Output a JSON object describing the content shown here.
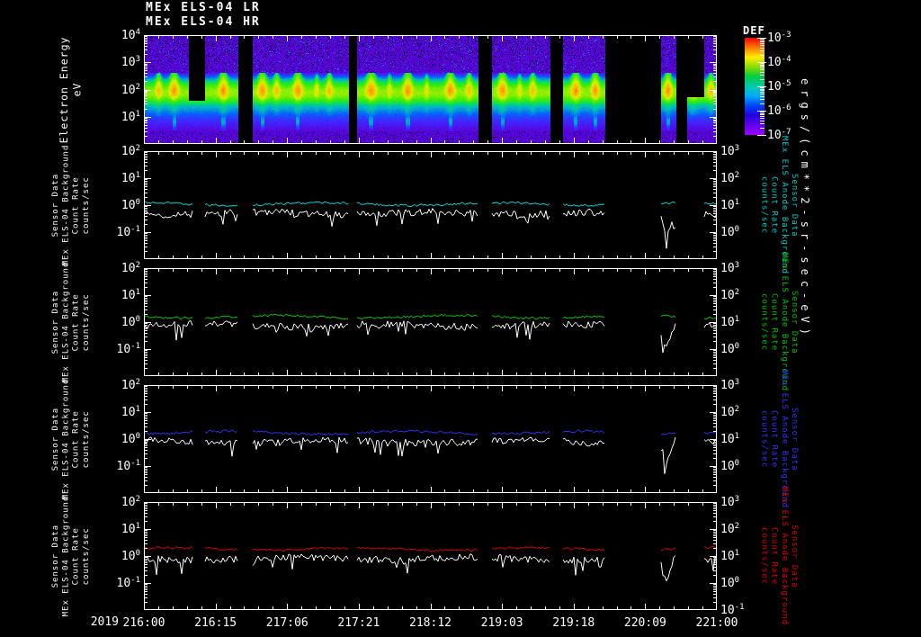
{
  "page": {
    "background": "#000000",
    "text_color": "#ffffff"
  },
  "titles": {
    "line1": "MEx ELS-04 LR",
    "line2": "MEx ELS-04 HR"
  },
  "x_axis": {
    "year": "2019",
    "tick_labels": [
      "216:00",
      "216:15",
      "217:06",
      "217:21",
      "218:12",
      "219:03",
      "219:18",
      "220:09",
      "221:00"
    ],
    "minor_divisions_per_major": 5,
    "total_minor_divisions": 40
  },
  "colorbar": {
    "title": "DEF",
    "units": "ergs/(cm**2-sr-sec-eV)",
    "tick_exponents": [
      -3,
      -4,
      -5,
      -6,
      -7
    ],
    "gradient_top_to_bottom": [
      "#ff0000",
      "#ff7700",
      "#ffee00",
      "#88dd00",
      "#00cc44",
      "#00ccaa",
      "#00aaff",
      "#0044ff",
      "#2200dd",
      "#6600ee",
      "#9900ff"
    ]
  },
  "time_segments": [
    [
      0,
      0.0848
    ],
    [
      0.1067,
      0.1648
    ],
    [
      0.19,
      0.358
    ],
    [
      0.372,
      0.584
    ],
    [
      0.6075,
      0.7096
    ],
    [
      0.7316,
      0.8053
    ],
    [
      0.9026,
      0.9293
    ],
    [
      0.978,
      1.0
    ]
  ],
  "chart_data": [
    {
      "type": "heatmap",
      "name": "electron-energy-spectrogram",
      "title": "MEx ELS-04 LR / MEx ELS-04 HR",
      "ylabel_lines": [
        "Electron Energy",
        "eV"
      ],
      "y_tick_exponents": [
        4,
        3,
        2,
        1
      ],
      "y_range_log10_eV": [
        0,
        4
      ],
      "z_units": "ergs/(cm**2-sr-sec-eV)",
      "z_range_log10": [
        -7,
        -3
      ],
      "gap_rects": [
        [
          0.0785,
          0.1067,
          0,
          0.6
        ],
        [
          0.1648,
          0.19,
          0,
          1
        ],
        [
          0.358,
          0.372,
          0,
          1
        ],
        [
          0.584,
          0.6075,
          0,
          1
        ],
        [
          0.7096,
          0.7316,
          0,
          1
        ],
        [
          0.8053,
          0.9026,
          0,
          1
        ],
        [
          0.9293,
          0.948,
          0,
          1
        ],
        [
          0.948,
          0.978,
          0,
          0.57
        ]
      ],
      "flares": [
        {
          "x": 0.025,
          "a": 0.7,
          "w": 0.005
        },
        {
          "x": 0.052,
          "a": 1.0,
          "w": 0.007
        },
        {
          "x": 0.138,
          "a": 1.0,
          "w": 0.007
        },
        {
          "x": 0.206,
          "a": 1.0,
          "w": 0.007
        },
        {
          "x": 0.231,
          "a": 0.7,
          "w": 0.005
        },
        {
          "x": 0.268,
          "a": 1.0,
          "w": 0.007
        },
        {
          "x": 0.301,
          "a": 0.45,
          "w": 0.0035
        },
        {
          "x": 0.323,
          "a": 0.7,
          "w": 0.005
        },
        {
          "x": 0.396,
          "a": 1.0,
          "w": 0.008
        },
        {
          "x": 0.428,
          "a": 0.45,
          "w": 0.0035
        },
        {
          "x": 0.46,
          "a": 1.0,
          "w": 0.007
        },
        {
          "x": 0.493,
          "a": 0.45,
          "w": 0.0035
        },
        {
          "x": 0.534,
          "a": 1.0,
          "w": 0.007
        },
        {
          "x": 0.567,
          "a": 0.7,
          "w": 0.005
        },
        {
          "x": 0.625,
          "a": 1.0,
          "w": 0.007
        },
        {
          "x": 0.655,
          "a": 0.45,
          "w": 0.0035
        },
        {
          "x": 0.678,
          "a": 0.7,
          "w": 0.005
        },
        {
          "x": 0.753,
          "a": 1.0,
          "w": 0.007
        },
        {
          "x": 0.787,
          "a": 1.0,
          "w": 0.006
        },
        {
          "x": 0.914,
          "a": 1.0,
          "w": 0.006
        },
        {
          "x": 0.958,
          "a": 0.8,
          "w": 0.006
        },
        {
          "x": 0.989,
          "a": 0.7,
          "w": 0.005
        }
      ]
    },
    {
      "type": "line",
      "name": "background-count-rate-panel-cyan",
      "left_label_lines": [
        "Sensor Data",
        "MEx ELS-04 Background",
        "Count Rate",
        "counts/sec"
      ],
      "right_label_lines": [
        "Sensor Data",
        "MEx ELS Anode Background",
        "Count Rate",
        "counts/sec"
      ],
      "right_label_color": "#00cccc",
      "left_tick_exponents": [
        2,
        1,
        0,
        -1
      ],
      "right_tick_exponents": [
        3,
        2,
        1,
        0
      ],
      "y_left_range_log10": [
        -2,
        2
      ],
      "y_right_range_log10": [
        -1,
        3
      ],
      "series": [
        {
          "name": "MEx ELS Anode Background",
          "color": "#00dddd",
          "level_log10": 0.04,
          "noise_log10": 0.045
        },
        {
          "name": "MEx ELS-04 Background",
          "color": "#ffffff",
          "level_log10": -0.3,
          "noise_log10": 0.13,
          "dip_x": 0.912
        }
      ]
    },
    {
      "type": "line",
      "name": "background-count-rate-panel-green",
      "left_label_lines": [
        "Sensor Data",
        "MEx ELS-04 Background",
        "Count Rate",
        "counts/sec"
      ],
      "right_label_lines": [
        "Sensor Data",
        "MEx ELS Anode Background",
        "Count Rate",
        "counts/sec"
      ],
      "right_label_color": "#00c300",
      "left_tick_exponents": [
        2,
        1,
        0,
        -1
      ],
      "right_tick_exponents": [
        3,
        2,
        1,
        0
      ],
      "y_left_range_log10": [
        -2,
        2
      ],
      "y_right_range_log10": [
        -1,
        3
      ],
      "series": [
        {
          "name": "MEx ELS Anode Background",
          "color": "#00cc00",
          "level_log10": 0.2,
          "noise_log10": 0.045
        },
        {
          "name": "MEx ELS-04 Background",
          "color": "#ffffff",
          "level_log10": -0.12,
          "noise_log10": 0.13,
          "dip_x": 0.912
        }
      ]
    },
    {
      "type": "line",
      "name": "background-count-rate-panel-blue",
      "left_label_lines": [
        "Sensor Data",
        "MEx ELS-04 Background",
        "Count Rate",
        "counts/sec"
      ],
      "right_label_lines": [
        "Sensor Data",
        "MEx ELS Anode Background",
        "Count Rate",
        "counts/sec"
      ],
      "right_label_color": "#3333ff",
      "left_tick_exponents": [
        2,
        1,
        0,
        -1
      ],
      "right_tick_exponents": [
        3,
        2,
        1,
        0
      ],
      "y_left_range_log10": [
        -2,
        2
      ],
      "y_right_range_log10": [
        -1,
        3
      ],
      "series": [
        {
          "name": "MEx ELS Anode Background",
          "color": "#3333ff",
          "level_log10": 0.24,
          "noise_log10": 0.05
        },
        {
          "name": "MEx ELS-04 Background",
          "color": "#ffffff",
          "level_log10": -0.1,
          "noise_log10": 0.13,
          "dip_x": 0.912
        }
      ]
    },
    {
      "type": "line",
      "name": "background-count-rate-panel-red",
      "left_label_lines": [
        "Sensor Data",
        "MEx ELS-04 Background",
        "Count Rate",
        "counts/sec"
      ],
      "right_label_lines": [
        "Sensor Data",
        "MEx ELS Anode Background",
        "Count Rate",
        "counts/sec"
      ],
      "right_label_color": "#dd0000",
      "left_tick_exponents": [
        2,
        1,
        0,
        -1
      ],
      "right_tick_exponents": [
        3,
        2,
        1,
        0,
        -1
      ],
      "y_left_range_log10": [
        -2,
        2
      ],
      "y_right_range_log10": [
        -1,
        3
      ],
      "series": [
        {
          "name": "MEx ELS Anode Background",
          "color": "#dd0000",
          "level_log10": 0.26,
          "noise_log10": 0.045
        },
        {
          "name": "MEx ELS-04 Background",
          "color": "#ffffff",
          "level_log10": -0.1,
          "noise_log10": 0.13,
          "dip_x": 0.912
        }
      ]
    }
  ]
}
